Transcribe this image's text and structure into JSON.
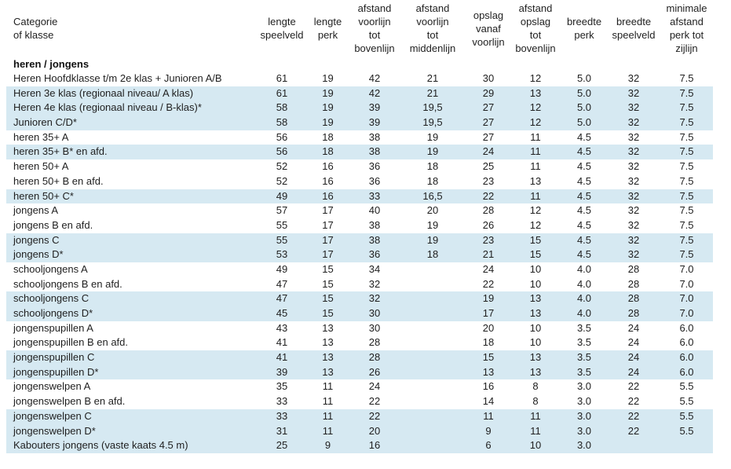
{
  "colors": {
    "row_band": "#d6e9f2",
    "text": "#1f1f1f",
    "background": "#ffffff"
  },
  "table": {
    "group_label": "heren / jongens",
    "columns": [
      {
        "label": "Categorie\nof klasse"
      },
      {
        "label": "lengte\nspeelveld"
      },
      {
        "label": "lengte\nperk"
      },
      {
        "label": "afstand\nvoorlijn\ntot\nbovenlijn"
      },
      {
        "label": "afstand\nvoorlijn\ntot\nmiddenlijn"
      },
      {
        "label": "opslag\nvanaf\nvoorlijn"
      },
      {
        "label": "afstand\nopslag\ntot\nbovenlijn"
      },
      {
        "label": "breedte\nperk"
      },
      {
        "label": "breedte\nspeelveld"
      },
      {
        "label": "minimale\nafstand\nperk tot\nzijlijn"
      }
    ],
    "rows": [
      {
        "category": "Heren Hoofdklasse t/m 2e klas + Junioren A/B",
        "values": [
          "61",
          "19",
          "42",
          "21",
          "30",
          "12",
          "5.0",
          "32",
          "7.5"
        ],
        "shaded": false
      },
      {
        "category": "Heren 3e klas (regionaal niveau/ A klas)",
        "values": [
          "61",
          "19",
          "42",
          "21",
          "29",
          "13",
          "5.0",
          "32",
          "7.5"
        ],
        "shaded": true
      },
      {
        "category": "Heren 4e klas (regionaal niveau / B-klas)*",
        "values": [
          "58",
          "19",
          "39",
          "19,5",
          "27",
          "12",
          "5.0",
          "32",
          "7.5"
        ],
        "shaded": true
      },
      {
        "category": "Junioren C/D*",
        "values": [
          "58",
          "19",
          "39",
          "19,5",
          "27",
          "12",
          "5.0",
          "32",
          "7.5"
        ],
        "shaded": true
      },
      {
        "category": "heren 35+ A",
        "values": [
          "56",
          "18",
          "38",
          "19",
          "27",
          "11",
          "4.5",
          "32",
          "7.5"
        ],
        "shaded": false
      },
      {
        "category": "heren 35+ B* en afd.",
        "values": [
          "56",
          "18",
          "38",
          "19",
          "24",
          "11",
          "4.5",
          "32",
          "7.5"
        ],
        "shaded": true
      },
      {
        "category": "heren 50+ A",
        "values": [
          "52",
          "16",
          "36",
          "18",
          "25",
          "11",
          "4.5",
          "32",
          "7.5"
        ],
        "shaded": false
      },
      {
        "category": "heren 50+ B en afd.",
        "values": [
          "52",
          "16",
          "36",
          "18",
          "23",
          "13",
          "4.5",
          "32",
          "7.5"
        ],
        "shaded": false
      },
      {
        "category": "heren 50+ C*",
        "values": [
          "49",
          "16",
          "33",
          "16,5",
          "22",
          "11",
          "4.5",
          "32",
          "7.5"
        ],
        "shaded": true
      },
      {
        "category": "jongens A",
        "values": [
          "57",
          "17",
          "40",
          "20",
          "28",
          "12",
          "4.5",
          "32",
          "7.5"
        ],
        "shaded": false
      },
      {
        "category": "jongens B en afd.",
        "values": [
          "55",
          "17",
          "38",
          "19",
          "26",
          "12",
          "4.5",
          "32",
          "7.5"
        ],
        "shaded": false
      },
      {
        "category": "jongens C",
        "values": [
          "55",
          "17",
          "38",
          "19",
          "23",
          "15",
          "4.5",
          "32",
          "7.5"
        ],
        "shaded": true
      },
      {
        "category": "jongens D*",
        "values": [
          "53",
          "17",
          "36",
          "18",
          "21",
          "15",
          "4.5",
          "32",
          "7.5"
        ],
        "shaded": true
      },
      {
        "category": "schooljongens A",
        "values": [
          "49",
          "15",
          "34",
          "",
          "24",
          "10",
          "4.0",
          "28",
          "7.0"
        ],
        "shaded": false
      },
      {
        "category": "schooljongens B en afd.",
        "values": [
          "47",
          "15",
          "32",
          "",
          "22",
          "10",
          "4.0",
          "28",
          "7.0"
        ],
        "shaded": false
      },
      {
        "category": "schooljongens C",
        "values": [
          "47",
          "15",
          "32",
          "",
          "19",
          "13",
          "4.0",
          "28",
          "7.0"
        ],
        "shaded": true
      },
      {
        "category": "schooljongens D*",
        "values": [
          "45",
          "15",
          "30",
          "",
          "17",
          "13",
          "4.0",
          "28",
          "7.0"
        ],
        "shaded": true
      },
      {
        "category": "jongenspupillen A",
        "values": [
          "43",
          "13",
          "30",
          "",
          "20",
          "10",
          "3.5",
          "24",
          "6.0"
        ],
        "shaded": false
      },
      {
        "category": "jongenspupillen B en afd.",
        "values": [
          "41",
          "13",
          "28",
          "",
          "18",
          "10",
          "3.5",
          "24",
          "6.0"
        ],
        "shaded": false
      },
      {
        "category": "jongenspupillen C",
        "values": [
          "41",
          "13",
          "28",
          "",
          "15",
          "13",
          "3.5",
          "24",
          "6.0"
        ],
        "shaded": true
      },
      {
        "category": "jongenspupillen D*",
        "values": [
          "39",
          "13",
          "26",
          "",
          "13",
          "13",
          "3.5",
          "24",
          "6.0"
        ],
        "shaded": true
      },
      {
        "category": "jongenswelpen A",
        "values": [
          "35",
          "11",
          "24",
          "",
          "16",
          "8",
          "3.0",
          "22",
          "5.5"
        ],
        "shaded": false
      },
      {
        "category": "jongenswelpen B en afd.",
        "values": [
          "33",
          "11",
          "22",
          "",
          "14",
          "8",
          "3.0",
          "22",
          "5.5"
        ],
        "shaded": false
      },
      {
        "category": "jongenswelpen C",
        "values": [
          "33",
          "11",
          "22",
          "",
          "11",
          "11",
          "3.0",
          "22",
          "5.5"
        ],
        "shaded": true
      },
      {
        "category": "jongenswelpen D*",
        "values": [
          "31",
          "11",
          "20",
          "",
          "9",
          "11",
          "3.0",
          "22",
          "5.5"
        ],
        "shaded": true
      },
      {
        "category": "Kabouters jongens (vaste kaats 4.5 m)",
        "values": [
          "25",
          "9",
          "16",
          "",
          "6",
          "10",
          "3.0",
          "",
          ""
        ],
        "shaded": true
      }
    ]
  }
}
